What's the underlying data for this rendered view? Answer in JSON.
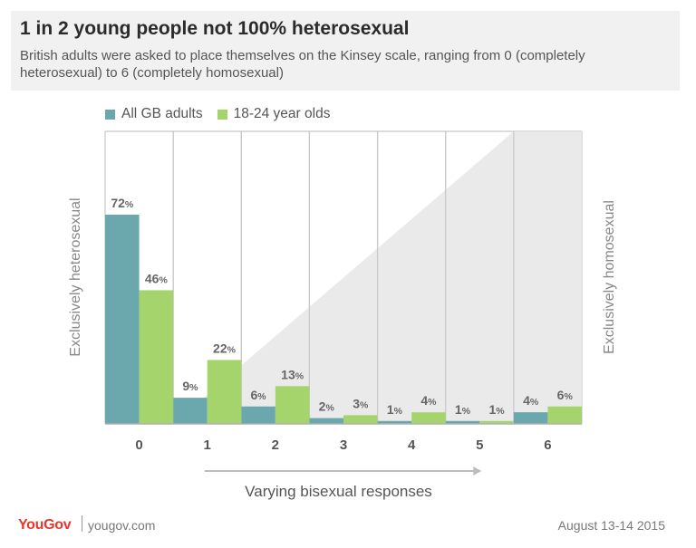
{
  "header": {
    "title": "1 in 2 young people not 100% heterosexual",
    "subtitle": "British adults were asked to place themselves on the Kinsey scale, ranging from 0 (completely heterosexual) to 6 (completely homosexual)"
  },
  "chart_data": {
    "type": "bar",
    "categories": [
      "0",
      "1",
      "2",
      "3",
      "4",
      "5",
      "6"
    ],
    "series": [
      {
        "name": "All GB adults",
        "values": [
          72,
          9,
          6,
          2,
          1,
          1,
          4
        ],
        "color": "#6aa8ad"
      },
      {
        "name": "18-24 year olds",
        "values": [
          46,
          22,
          13,
          3,
          4,
          1,
          6
        ],
        "color": "#a6d46c"
      }
    ],
    "value_suffix": "%",
    "ylim": [
      0,
      72
    ],
    "left_label": "Exclusively heterosexual",
    "right_label": "Exclusively homosexual",
    "x_arrow_label": "Varying bisexual responses",
    "legend_position": "top-left"
  },
  "footer": {
    "brand": "YouGov",
    "url": "yougov.com",
    "date": "August 13-14 2015"
  }
}
